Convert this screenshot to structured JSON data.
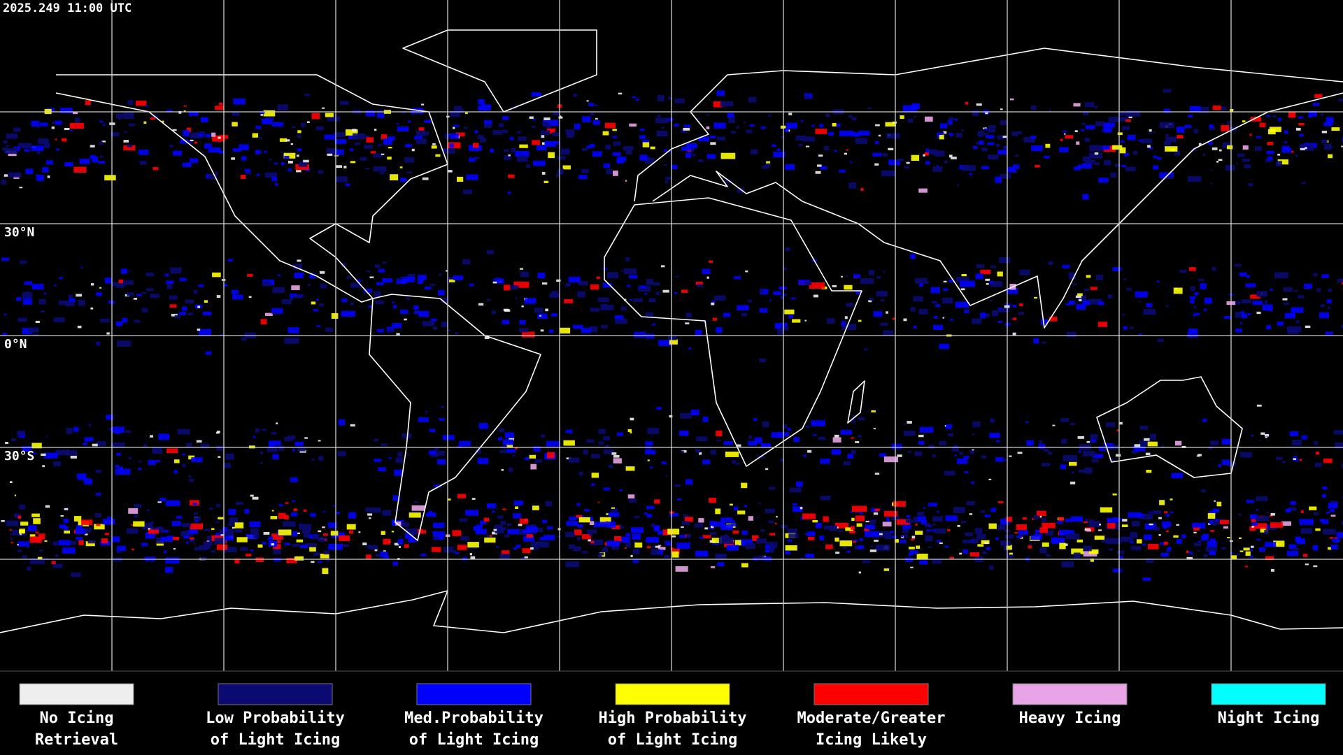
{
  "header": {
    "timestamp": "2025.249 11:00 UTC"
  },
  "map": {
    "latitude_labels": [
      "30°N",
      "0°N",
      "30°S"
    ]
  },
  "legend": [
    {
      "label": [
        "No Icing",
        "Retrieval"
      ],
      "color": "#eeeeee"
    },
    {
      "label": [
        "Low Probability",
        "of Light Icing"
      ],
      "color": "#0a0a72"
    },
    {
      "label": [
        "Med.Probability",
        "of Light Icing"
      ],
      "color": "#0000ff"
    },
    {
      "label": [
        "High Probability",
        "of Light Icing"
      ],
      "color": "#ffff00"
    },
    {
      "label": [
        "Moderate/Greater",
        "Icing Likely"
      ],
      "color": "#ff0000"
    },
    {
      "label": [
        "Heavy Icing"
      ],
      "color": "#e8a4e6"
    },
    {
      "label": [
        "Night Icing"
      ],
      "color": "#00ffff"
    }
  ]
}
